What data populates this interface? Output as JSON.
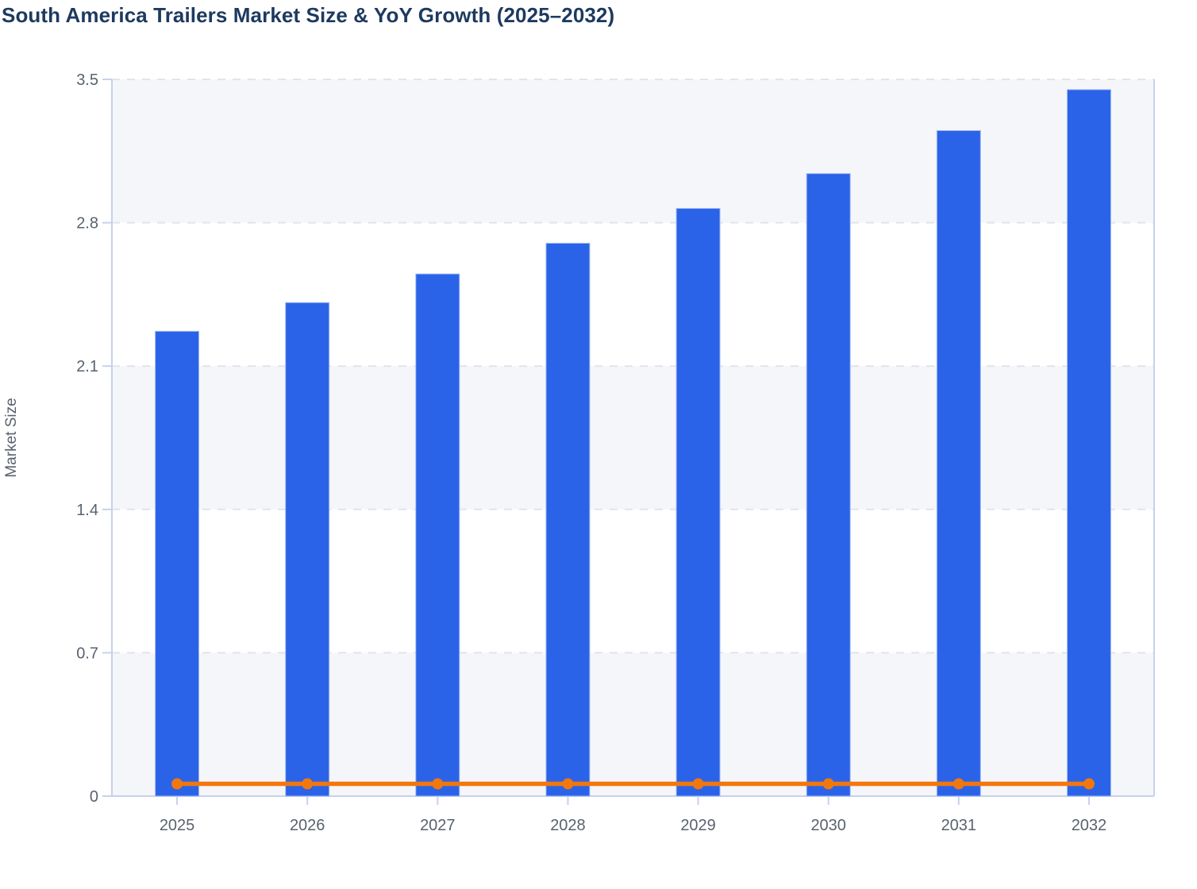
{
  "page": {
    "title": "South America Trailers Market Size & YoY Growth (2025–2032)"
  },
  "chart_data": {
    "type": "bar",
    "title": "South America Trailers Market Size & YoY Growth (2025–2032)",
    "categories": [
      "2025",
      "2026",
      "2027",
      "2028",
      "2029",
      "2030",
      "2031",
      "2032"
    ],
    "series": [
      {
        "name": "Market Size",
        "type": "bar",
        "values": [
          2.27,
          2.41,
          2.55,
          2.7,
          2.87,
          3.04,
          3.25,
          3.45
        ],
        "color": "#2a63e8"
      },
      {
        "name": "YoY Growth",
        "type": "line",
        "values": [
          0.06,
          0.06,
          0.06,
          0.06,
          0.06,
          0.06,
          0.06,
          0.06
        ],
        "color": "#f2770d"
      }
    ],
    "xlabel": "",
    "ylabel": "Market Size",
    "ylim": [
      0,
      3.5
    ],
    "yticks": [
      0,
      0.7,
      1.4,
      2.1,
      2.8,
      3.5
    ],
    "ytick_labels": [
      "0",
      "0.7",
      "1.4",
      "2.1",
      "2.8",
      "3.5"
    ],
    "grid": "dashed-horizontal",
    "legend_position": "none",
    "plot_bands_alternating": true,
    "colors": {
      "bar_fill": "#2a63e8",
      "bar_border": "#a6bdf3",
      "line": "#f2770d",
      "band_gray": "#f5f6fa",
      "band_white": "#ffffff",
      "gridline": "#e1e4eb",
      "axis_line": "#c7d1ec",
      "tick_text": "#59626f",
      "title_text": "#1d3a5f"
    }
  }
}
